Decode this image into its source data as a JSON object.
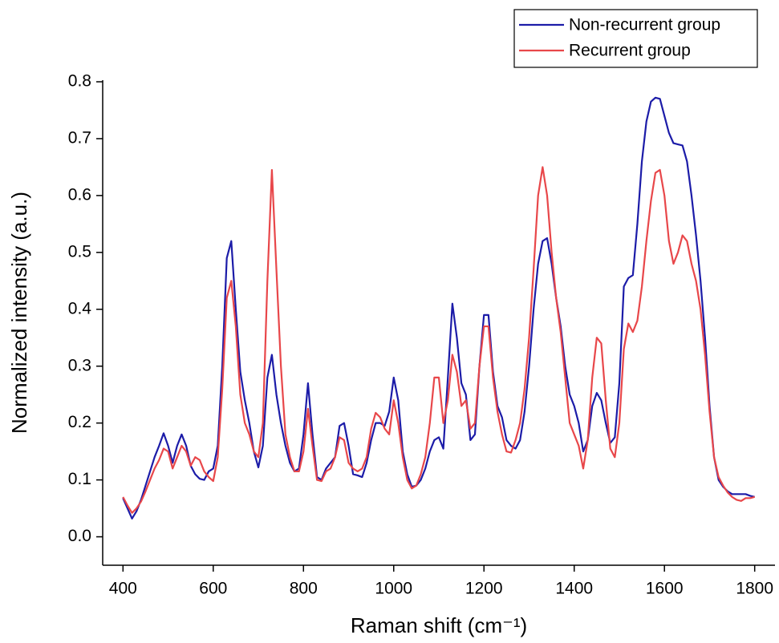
{
  "chart_data": {
    "type": "line",
    "xlabel": "Raman shift (cm⁻¹)",
    "ylabel": "Normalized intensity (a.u.)",
    "x": [
      400,
      410,
      420,
      430,
      440,
      450,
      460,
      470,
      480,
      490,
      500,
      510,
      520,
      530,
      540,
      550,
      560,
      570,
      580,
      590,
      600,
      610,
      620,
      630,
      640,
      650,
      660,
      670,
      680,
      690,
      700,
      710,
      720,
      730,
      740,
      750,
      760,
      770,
      780,
      790,
      800,
      810,
      820,
      830,
      840,
      850,
      860,
      870,
      880,
      890,
      900,
      910,
      920,
      930,
      940,
      950,
      960,
      970,
      980,
      990,
      1000,
      1010,
      1020,
      1030,
      1040,
      1050,
      1060,
      1070,
      1080,
      1090,
      1100,
      1110,
      1120,
      1130,
      1140,
      1150,
      1160,
      1170,
      1180,
      1190,
      1200,
      1210,
      1220,
      1230,
      1240,
      1250,
      1260,
      1270,
      1280,
      1290,
      1300,
      1310,
      1320,
      1330,
      1340,
      1350,
      1360,
      1370,
      1380,
      1390,
      1400,
      1410,
      1420,
      1430,
      1440,
      1450,
      1460,
      1470,
      1480,
      1490,
      1500,
      1510,
      1520,
      1530,
      1540,
      1550,
      1560,
      1570,
      1580,
      1590,
      1600,
      1610,
      1620,
      1630,
      1640,
      1650,
      1660,
      1670,
      1680,
      1690,
      1700,
      1710,
      1720,
      1730,
      1740,
      1750,
      1760,
      1770,
      1780,
      1790,
      1800
    ],
    "series": [
      {
        "name": "Non-recurrent group",
        "color": "#1c1ca8",
        "values": [
          0.068,
          0.05,
          0.032,
          0.045,
          0.065,
          0.09,
          0.115,
          0.14,
          0.16,
          0.182,
          0.16,
          0.13,
          0.16,
          0.18,
          0.16,
          0.125,
          0.11,
          0.102,
          0.1,
          0.115,
          0.12,
          0.16,
          0.3,
          0.49,
          0.52,
          0.4,
          0.29,
          0.24,
          0.2,
          0.15,
          0.122,
          0.16,
          0.28,
          0.32,
          0.25,
          0.2,
          0.16,
          0.13,
          0.115,
          0.12,
          0.18,
          0.27,
          0.18,
          0.105,
          0.1,
          0.12,
          0.13,
          0.14,
          0.195,
          0.2,
          0.16,
          0.11,
          0.108,
          0.105,
          0.13,
          0.17,
          0.2,
          0.2,
          0.195,
          0.22,
          0.28,
          0.24,
          0.15,
          0.11,
          0.088,
          0.09,
          0.1,
          0.12,
          0.15,
          0.17,
          0.175,
          0.155,
          0.28,
          0.41,
          0.35,
          0.27,
          0.25,
          0.17,
          0.18,
          0.3,
          0.39,
          0.39,
          0.29,
          0.23,
          0.21,
          0.17,
          0.16,
          0.155,
          0.17,
          0.22,
          0.3,
          0.4,
          0.48,
          0.52,
          0.525,
          0.48,
          0.42,
          0.37,
          0.3,
          0.25,
          0.23,
          0.2,
          0.15,
          0.17,
          0.23,
          0.253,
          0.24,
          0.2,
          0.165,
          0.175,
          0.27,
          0.44,
          0.455,
          0.46,
          0.55,
          0.66,
          0.73,
          0.765,
          0.772,
          0.77,
          0.74,
          0.71,
          0.692,
          0.69,
          0.688,
          0.66,
          0.6,
          0.53,
          0.45,
          0.35,
          0.23,
          0.14,
          0.1,
          0.088,
          0.08,
          0.075,
          0.075,
          0.075,
          0.075,
          0.072,
          0.07
        ]
      },
      {
        "name": "Recurrent group",
        "color": "#e8474a",
        "values": [
          0.07,
          0.055,
          0.042,
          0.05,
          0.062,
          0.08,
          0.1,
          0.12,
          0.135,
          0.155,
          0.15,
          0.12,
          0.14,
          0.16,
          0.15,
          0.125,
          0.14,
          0.135,
          0.115,
          0.105,
          0.098,
          0.14,
          0.26,
          0.42,
          0.45,
          0.37,
          0.25,
          0.2,
          0.18,
          0.15,
          0.14,
          0.2,
          0.45,
          0.645,
          0.47,
          0.3,
          0.18,
          0.14,
          0.115,
          0.115,
          0.15,
          0.225,
          0.16,
          0.1,
          0.098,
          0.115,
          0.12,
          0.14,
          0.175,
          0.17,
          0.13,
          0.12,
          0.115,
          0.12,
          0.14,
          0.19,
          0.218,
          0.21,
          0.19,
          0.18,
          0.24,
          0.2,
          0.14,
          0.1,
          0.085,
          0.09,
          0.11,
          0.14,
          0.2,
          0.28,
          0.28,
          0.2,
          0.24,
          0.32,
          0.29,
          0.23,
          0.24,
          0.19,
          0.2,
          0.3,
          0.37,
          0.37,
          0.28,
          0.22,
          0.18,
          0.15,
          0.148,
          0.17,
          0.2,
          0.26,
          0.35,
          0.47,
          0.6,
          0.65,
          0.6,
          0.5,
          0.42,
          0.36,
          0.28,
          0.2,
          0.18,
          0.16,
          0.12,
          0.17,
          0.28,
          0.35,
          0.34,
          0.24,
          0.155,
          0.14,
          0.2,
          0.33,
          0.375,
          0.36,
          0.38,
          0.44,
          0.52,
          0.59,
          0.64,
          0.645,
          0.6,
          0.52,
          0.48,
          0.5,
          0.53,
          0.52,
          0.48,
          0.45,
          0.4,
          0.32,
          0.22,
          0.14,
          0.105,
          0.09,
          0.078,
          0.07,
          0.065,
          0.063,
          0.068,
          0.068,
          0.07
        ]
      }
    ],
    "xlim": [
      355,
      1845
    ],
    "ylim": [
      -0.05,
      0.8
    ],
    "xticks": [
      400,
      600,
      800,
      1000,
      1200,
      1400,
      1600,
      1800
    ],
    "yticks": [
      {
        "value": 0,
        "label": "0.0"
      },
      0.1,
      0.2,
      0.3,
      0.4,
      0.5,
      0.6,
      0.7,
      0.8
    ],
    "legend": "upper right"
  }
}
